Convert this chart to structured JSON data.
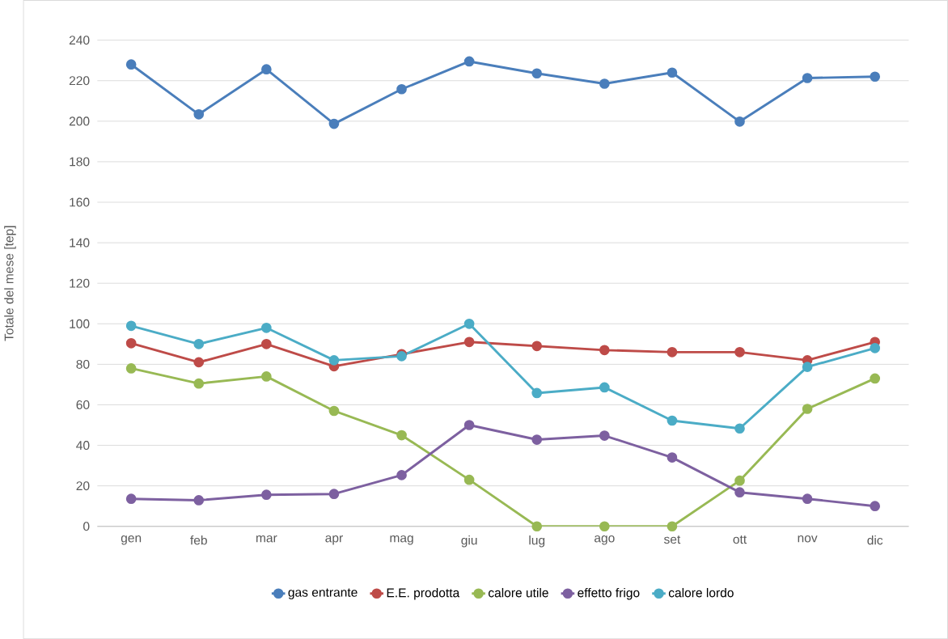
{
  "chart_data": {
    "type": "line",
    "ylabel": "Totale del mese [tep]",
    "categories": [
      "gen",
      "feb",
      "mar",
      "apr",
      "mag",
      "giu",
      "lug",
      "ago",
      "set",
      "ott",
      "nov",
      "dic"
    ],
    "series": [
      {
        "name": "gas entrante",
        "color": "#4a7ebb",
        "values": [
          228,
          203.4,
          225.6,
          198.7,
          215.8,
          229.5,
          223.6,
          218.5,
          224,
          199.8,
          221.3,
          222
        ]
      },
      {
        "name": "E.E. prodotta",
        "color": "#be4b48",
        "values": [
          90.4,
          81,
          90,
          79,
          85,
          91,
          89,
          87,
          86,
          86,
          82,
          91
        ]
      },
      {
        "name": "calore utile",
        "color": "#98b954",
        "values": [
          78,
          70.5,
          74,
          57,
          45,
          23,
          0,
          0,
          0,
          22.6,
          58,
          73
        ]
      },
      {
        "name": "effetto frigo",
        "color": "#7d60a0",
        "values": [
          13.6,
          12.9,
          15.6,
          16,
          25.3,
          50,
          42.8,
          44.8,
          34,
          16.8,
          13.6,
          10
        ]
      },
      {
        "name": "calore lordo",
        "color": "#4bacc6",
        "values": [
          99,
          90,
          98,
          82,
          84,
          100,
          65.8,
          68.6,
          52.2,
          48.3,
          78.7,
          88
        ]
      }
    ],
    "ylim": [
      0,
      240
    ],
    "yticks": [
      0,
      20,
      40,
      60,
      80,
      100,
      120,
      140,
      160,
      180,
      200,
      220,
      240
    ],
    "grid": "y",
    "legend": "bottom",
    "marker": "circle",
    "line_style": "solid"
  }
}
